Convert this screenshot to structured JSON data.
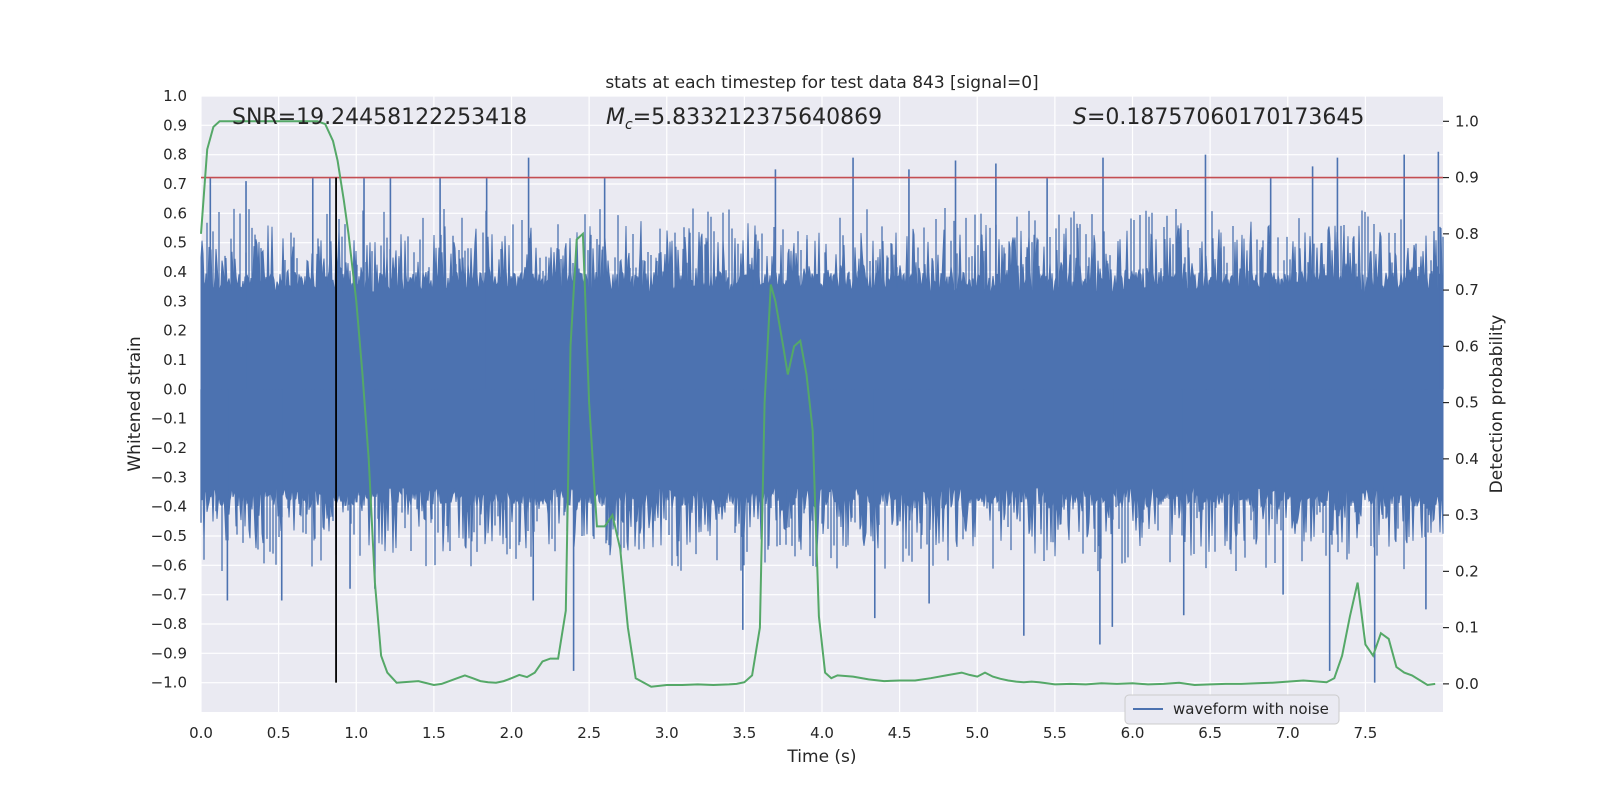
{
  "chart_data": {
    "type": "line",
    "title": "stats at each timestep for test data 843 [signal=0]",
    "xlabel": "Time (s)",
    "ylabel": "Whitened strain",
    "ylabel_right": "Detection probability",
    "xlim": [
      0.0,
      8.0
    ],
    "ylim": [
      -1.1,
      1.0
    ],
    "ylim_right": [
      -0.05,
      1.045
    ],
    "x_ticks": [
      "0.0",
      "0.5",
      "1.0",
      "1.5",
      "2.0",
      "2.5",
      "3.0",
      "3.5",
      "4.0",
      "4.5",
      "5.0",
      "5.5",
      "6.0",
      "6.5",
      "7.0",
      "7.5"
    ],
    "y_ticks": [
      "1.0",
      "0.9",
      "0.8",
      "0.7",
      "0.6",
      "0.5",
      "0.4",
      "0.3",
      "0.2",
      "0.1",
      "0.0",
      "−0.1",
      "−0.2",
      "−0.3",
      "−0.4",
      "−0.5",
      "−0.6",
      "−0.7",
      "−0.8",
      "−0.9",
      "−1.0"
    ],
    "y_right_ticks": [
      "1.0",
      "0.9",
      "0.8",
      "0.7",
      "0.6",
      "0.5",
      "0.4",
      "0.3",
      "0.2",
      "0.1",
      "0.0"
    ],
    "annotations": {
      "snr": "SNR=19.24458122253418",
      "mc_symbol": "M",
      "mc_sub": "c",
      "mc_value": "=5.833212375640869",
      "s_symbol": "S",
      "s_value": "=0.18757060170173645"
    },
    "legend": {
      "label": "waveform with noise",
      "loc": "lower-right"
    },
    "threshold_line": {
      "value": 0.9,
      "axis": "right",
      "color": "#c44e52"
    },
    "event_line": {
      "x": 0.87,
      "y_range": [
        -1.0,
        0.9
      ],
      "color": "#000000"
    },
    "series": [
      {
        "name": "waveform with noise",
        "axis": "left",
        "color": "#4c72b0",
        "kind": "noise",
        "duration_s": 8.0,
        "envelope": 0.4,
        "peaks_pos": [
          [
            0.06,
            0.72
          ],
          [
            0.29,
            0.71
          ],
          [
            0.72,
            0.72
          ],
          [
            0.83,
            0.72
          ],
          [
            1.05,
            0.72
          ],
          [
            1.22,
            0.72
          ],
          [
            1.54,
            0.72
          ],
          [
            1.84,
            0.72
          ],
          [
            2.11,
            0.79
          ],
          [
            2.6,
            0.72
          ],
          [
            3.7,
            0.75
          ],
          [
            4.2,
            0.79
          ],
          [
            4.56,
            0.75
          ],
          [
            4.86,
            0.78
          ],
          [
            5.12,
            0.77
          ],
          [
            5.45,
            0.72
          ],
          [
            5.81,
            0.79
          ],
          [
            6.47,
            0.8
          ],
          [
            6.89,
            0.72
          ],
          [
            7.16,
            0.76
          ],
          [
            7.32,
            0.79
          ],
          [
            7.75,
            0.8
          ],
          [
            7.97,
            0.81
          ]
        ],
        "peaks_neg": [
          [
            0.17,
            -0.72
          ],
          [
            0.52,
            -0.72
          ],
          [
            0.96,
            -0.68
          ],
          [
            1.12,
            -0.68
          ],
          [
            2.14,
            -0.72
          ],
          [
            2.4,
            -0.96
          ],
          [
            3.49,
            -0.82
          ],
          [
            4.34,
            -0.78
          ],
          [
            4.69,
            -0.73
          ],
          [
            5.3,
            -0.84
          ],
          [
            5.79,
            -0.87
          ],
          [
            5.87,
            -0.81
          ],
          [
            6.33,
            -0.77
          ],
          [
            6.97,
            -0.7
          ],
          [
            7.27,
            -0.96
          ],
          [
            7.56,
            -1.0
          ],
          [
            7.89,
            -0.75
          ]
        ]
      },
      {
        "name": "detection probability",
        "axis": "right",
        "color": "#55a868",
        "x": [
          0.0,
          0.04,
          0.08,
          0.12,
          0.16,
          0.2,
          0.3,
          0.4,
          0.5,
          0.6,
          0.7,
          0.75,
          0.8,
          0.85,
          0.88,
          0.92,
          0.95,
          1.0,
          1.04,
          1.08,
          1.12,
          1.16,
          1.2,
          1.26,
          1.3,
          1.4,
          1.5,
          1.55,
          1.6,
          1.65,
          1.7,
          1.75,
          1.8,
          1.85,
          1.9,
          1.95,
          2.0,
          2.05,
          2.1,
          2.15,
          2.2,
          2.25,
          2.3,
          2.35,
          2.38,
          2.42,
          2.46,
          2.5,
          2.55,
          2.6,
          2.65,
          2.7,
          2.75,
          2.8,
          2.9,
          3.0,
          3.1,
          3.2,
          3.3,
          3.4,
          3.45,
          3.5,
          3.55,
          3.6,
          3.63,
          3.67,
          3.7,
          3.75,
          3.78,
          3.82,
          3.86,
          3.9,
          3.94,
          3.98,
          4.02,
          4.06,
          4.1,
          4.2,
          4.3,
          4.4,
          4.5,
          4.6,
          4.7,
          4.8,
          4.9,
          4.95,
          5.0,
          5.05,
          5.1,
          5.15,
          5.2,
          5.25,
          5.3,
          5.35,
          5.4,
          5.5,
          5.6,
          5.7,
          5.8,
          5.9,
          6.0,
          6.1,
          6.2,
          6.3,
          6.4,
          6.5,
          6.6,
          6.7,
          6.8,
          6.9,
          7.0,
          7.1,
          7.2,
          7.25,
          7.3,
          7.35,
          7.4,
          7.45,
          7.5,
          7.55,
          7.6,
          7.65,
          7.7,
          7.75,
          7.8,
          7.9,
          7.95
        ],
        "values": [
          0.8,
          0.95,
          0.99,
          1.0,
          1.0,
          1.0,
          1.0,
          1.0,
          1.0,
          1.0,
          1.0,
          1.0,
          0.995,
          0.965,
          0.93,
          0.86,
          0.8,
          0.68,
          0.55,
          0.4,
          0.18,
          0.05,
          0.02,
          0.002,
          0.003,
          0.005,
          -0.002,
          0.0,
          0.005,
          0.01,
          0.015,
          0.01,
          0.005,
          0.003,
          0.002,
          0.005,
          0.01,
          0.016,
          0.012,
          0.02,
          0.04,
          0.045,
          0.045,
          0.13,
          0.6,
          0.79,
          0.8,
          0.5,
          0.28,
          0.28,
          0.3,
          0.24,
          0.1,
          0.01,
          -0.005,
          -0.002,
          -0.002,
          -0.001,
          -0.002,
          -0.001,
          0.0,
          0.003,
          0.015,
          0.1,
          0.5,
          0.71,
          0.68,
          0.6,
          0.55,
          0.6,
          0.61,
          0.55,
          0.45,
          0.12,
          0.02,
          0.01,
          0.015,
          0.013,
          0.008,
          0.005,
          0.006,
          0.006,
          0.01,
          0.015,
          0.02,
          0.016,
          0.013,
          0.02,
          0.013,
          0.009,
          0.006,
          0.004,
          0.003,
          0.004,
          0.003,
          -0.001,
          0.0,
          -0.001,
          0.001,
          0.0,
          0.001,
          -0.001,
          0.0,
          0.002,
          -0.002,
          -0.001,
          0.0,
          0.0,
          0.001,
          0.002,
          0.004,
          0.006,
          0.004,
          0.003,
          0.01,
          0.05,
          0.12,
          0.18,
          0.07,
          0.05,
          0.09,
          0.08,
          0.03,
          0.02,
          0.015,
          -0.002,
          0.0
        ]
      }
    ]
  }
}
